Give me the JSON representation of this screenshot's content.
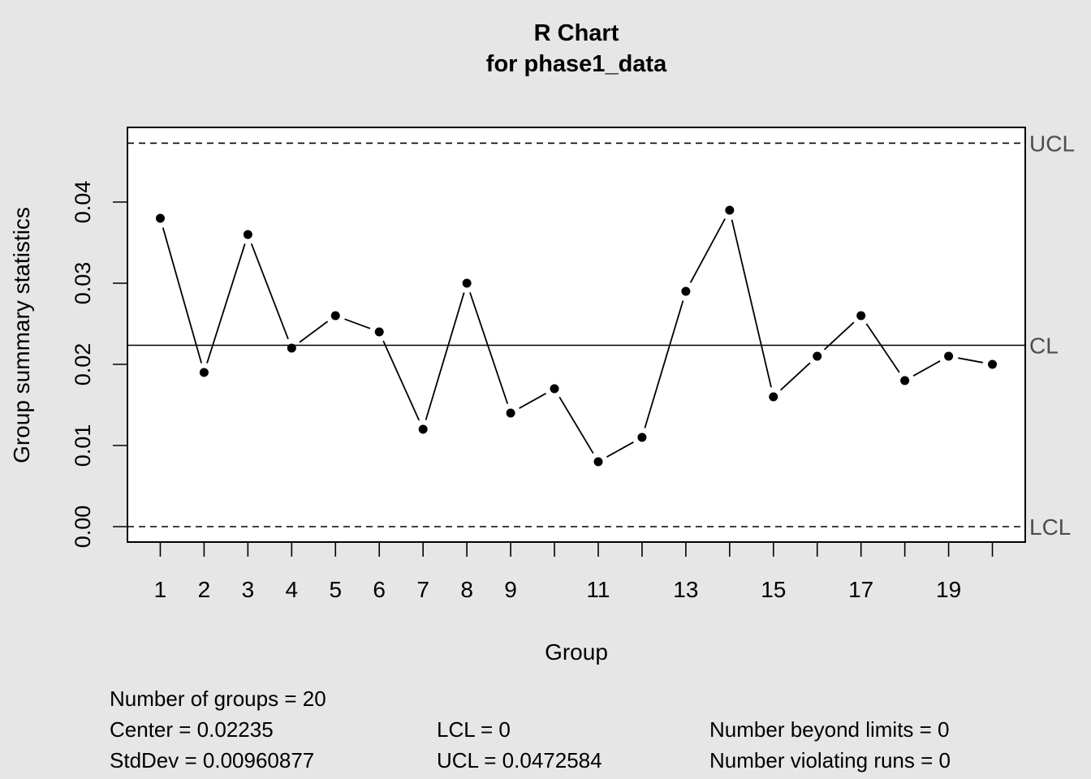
{
  "chart_data": {
    "type": "line",
    "title": "R Chart",
    "subtitle": "for phase1_data",
    "xlabel": "Group",
    "ylabel": "Group summary statistics",
    "x": [
      1,
      2,
      3,
      4,
      5,
      6,
      7,
      8,
      9,
      10,
      11,
      12,
      13,
      14,
      15,
      16,
      17,
      18,
      19,
      20
    ],
    "values": [
      0.038,
      0.019,
      0.036,
      0.022,
      0.026,
      0.024,
      0.012,
      0.03,
      0.014,
      0.017,
      0.008,
      0.011,
      0.029,
      0.039,
      0.016,
      0.021,
      0.026,
      0.018,
      0.021,
      0.02
    ],
    "x_tick_labels": [
      "1",
      "2",
      "3",
      "4",
      "5",
      "6",
      "7",
      "8",
      "9",
      "11",
      "13",
      "15",
      "17",
      "19"
    ],
    "x_ticks_labeled": [
      1,
      2,
      3,
      4,
      5,
      6,
      7,
      8,
      9,
      11,
      13,
      15,
      17,
      19
    ],
    "y_ticks": [
      0.0,
      0.01,
      0.02,
      0.03,
      0.04
    ],
    "y_tick_labels": [
      "0.00",
      "0.01",
      "0.02",
      "0.03",
      "0.04"
    ],
    "ylim": [
      -0.0019,
      0.0492
    ],
    "xlim": [
      0.25,
      20.75
    ],
    "limits": {
      "UCL": 0.0472584,
      "CL": 0.02235,
      "LCL": 0
    },
    "limit_labels": {
      "UCL": "UCL",
      "CL": "CL",
      "LCL": "LCL"
    },
    "grid": false
  },
  "stats": {
    "groups": "Number of groups = 20",
    "center": "Center = 0.02235",
    "stddev": "StdDev = 0.00960877",
    "lcl": "LCL = 0",
    "ucl": "UCL = 0.0472584",
    "beyond": "Number beyond limits = 0",
    "runs": "Number violating runs = 0"
  },
  "colors": {
    "background": "#e6e6e6",
    "plot": "#ffffff",
    "line": "#000000",
    "limit_label": "#4d4d4d"
  }
}
